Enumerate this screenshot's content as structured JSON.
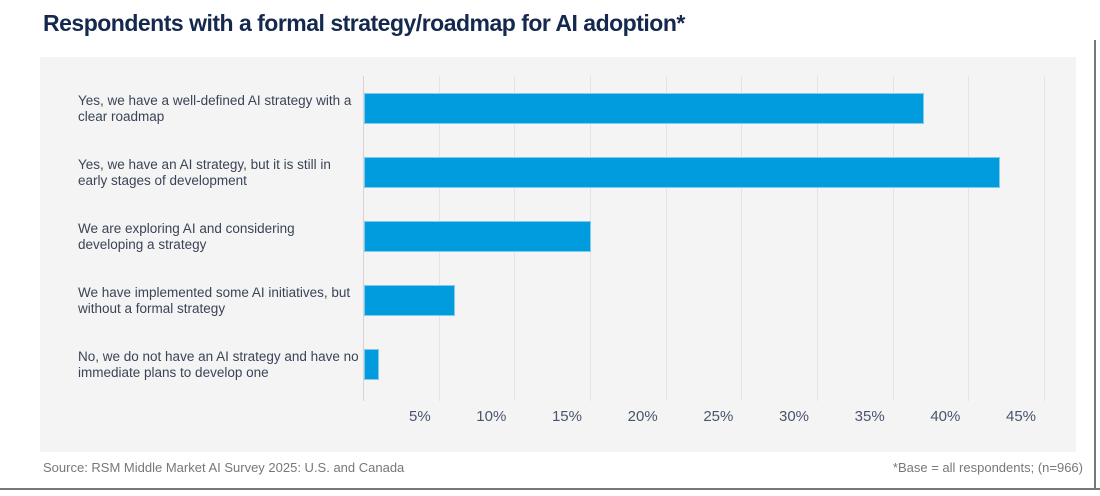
{
  "title": "Respondents with a formal strategy/roadmap for AI adoption*",
  "chart_data": {
    "type": "bar",
    "orientation": "horizontal",
    "title": "Respondents with a formal strategy/roadmap for AI adoption*",
    "categories": [
      "Yes, we have a well-defined AI strategy with a clear roadmap",
      "Yes, we have an AI strategy, but it is still in early stages of development",
      "We are exploring AI and considering developing a strategy",
      "We have implemented some AI initiatives, but without a formal strategy",
      "No, we do not have an AI strategy and have no immediate plans to develop one"
    ],
    "values": [
      37,
      42,
      15,
      6,
      1
    ],
    "unit": "%",
    "xlabel": "",
    "ylabel": "",
    "xlim": [
      0,
      47
    ],
    "x_tick_values": [
      5,
      10,
      15,
      20,
      25,
      30,
      35,
      40,
      45
    ],
    "x_tick_labels": [
      "5%",
      "10%",
      "15%",
      "20%",
      "25%",
      "30%",
      "35%",
      "40%",
      "45%"
    ],
    "grid": "vertical-gridlines-on",
    "legend": "none",
    "bar_color": "#009CDE",
    "panel_background": "#F4F4F5"
  },
  "footer": {
    "source": "Source: RSM Middle Market AI Survey 2025: U.S. and Canada",
    "note": "*Base = all respondents; (n=966)"
  },
  "colors": {
    "title_text": "#15294E",
    "category_text": "#3A4456",
    "tick_text": "#4A546B",
    "footer_text": "#75787B",
    "bar_fill": "#009CDE",
    "bar_edge": "#85C8EC",
    "gridline": "#E4E4E6",
    "rule": "#75787B"
  }
}
